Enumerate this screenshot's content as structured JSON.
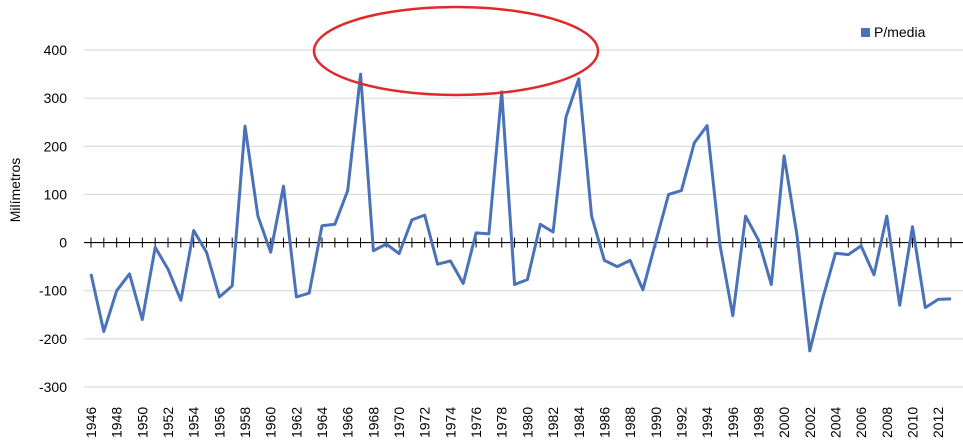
{
  "chart_data": {
    "type": "line",
    "title": "",
    "xlabel": "",
    "ylabel": "Milímetros",
    "ylim": [
      -300,
      400
    ],
    "yticks": [
      -300,
      -200,
      -100,
      0,
      100,
      200,
      300,
      400
    ],
    "xlim": [
      1946,
      2013
    ],
    "xticks": [
      1946,
      1948,
      1950,
      1952,
      1954,
      1956,
      1958,
      1960,
      1962,
      1964,
      1966,
      1968,
      1970,
      1972,
      1974,
      1976,
      1978,
      1980,
      1982,
      1984,
      1986,
      1988,
      1990,
      1992,
      1994,
      1996,
      1998,
      2000,
      2002,
      2004,
      2006,
      2008,
      2010,
      2012
    ],
    "grid": "horizontal",
    "legend": "top-right",
    "series": [
      {
        "name": "P/media",
        "color": "#4a72b8",
        "x": [
          1946,
          1947,
          1948,
          1949,
          1950,
          1951,
          1952,
          1953,
          1954,
          1955,
          1956,
          1957,
          1958,
          1959,
          1960,
          1961,
          1962,
          1963,
          1964,
          1965,
          1966,
          1967,
          1968,
          1969,
          1970,
          1971,
          1972,
          1973,
          1974,
          1975,
          1976,
          1977,
          1978,
          1979,
          1980,
          1981,
          1982,
          1983,
          1984,
          1985,
          1986,
          1987,
          1988,
          1989,
          1990,
          1991,
          1992,
          1993,
          1994,
          1995,
          1996,
          1997,
          1998,
          1999,
          2000,
          2001,
          2002,
          2003,
          2004,
          2005,
          2006,
          2007,
          2008,
          2009,
          2010,
          2011,
          2012,
          2013
        ],
        "values": [
          -65,
          -185,
          -100,
          -65,
          -160,
          -10,
          -55,
          -120,
          25,
          -20,
          -113,
          -90,
          242,
          55,
          -20,
          117,
          -113,
          -105,
          35,
          38,
          108,
          350,
          -17,
          -3,
          -23,
          47,
          57,
          -45,
          -38,
          -85,
          20,
          18,
          313,
          -87,
          -77,
          38,
          22,
          260,
          340,
          55,
          -37,
          -50,
          -37,
          -98,
          2,
          100,
          108,
          207,
          243,
          -5,
          -152,
          55,
          5,
          -87,
          180,
          15,
          -225,
          -117,
          -22,
          -25,
          -7,
          -67,
          55,
          -130,
          33,
          -135,
          -118,
          -117
        ]
      }
    ],
    "annotations": [
      {
        "type": "ellipse",
        "color": "#e0292a"
      }
    ]
  }
}
